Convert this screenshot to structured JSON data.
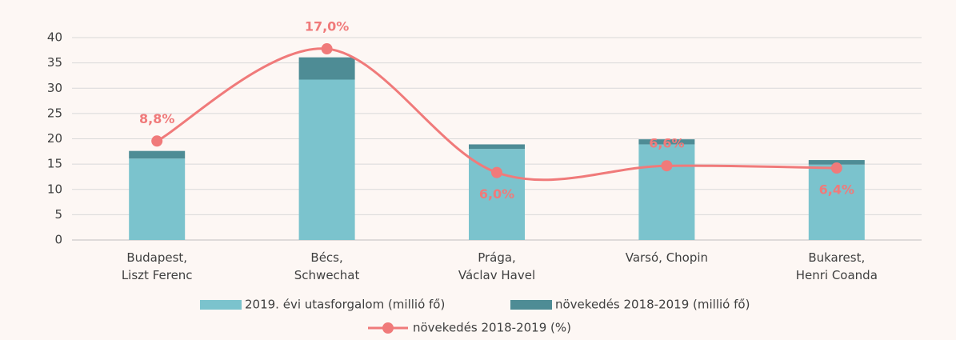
{
  "chart_data": {
    "type": "bar",
    "categories": [
      [
        "Budapest,",
        "Liszt Ferenc"
      ],
      [
        "Bécs,",
        "Schwechat"
      ],
      [
        "Prága,",
        "Václav Havel"
      ],
      [
        "Varsó, Chopin"
      ],
      [
        "Bukarest,",
        "Henri Coanda"
      ]
    ],
    "series": [
      {
        "name": "2019. évi utasforgalom (millió fő)",
        "color": "#7bc3cd",
        "type": "bar",
        "stack": true,
        "values": [
          16.1,
          31.7,
          18.0,
          18.9,
          14.9
        ]
      },
      {
        "name": "növekedés 2018-2019 (millió fő)",
        "color": "#4e8c95",
        "type": "bar",
        "stack": true,
        "values": [
          1.5,
          4.4,
          0.9,
          1.0,
          0.9
        ]
      },
      {
        "name": "növekedés 2018-2019 (%)",
        "color": "#f07a7a",
        "type": "line",
        "axis": "y2",
        "values": [
          8.8,
          17.0,
          6.0,
          6.6,
          6.4
        ],
        "value_labels": [
          "8,8%",
          "17,0%",
          "6,0%",
          "6,6%",
          "6,4%"
        ]
      }
    ],
    "ylim": [
      0,
      40
    ],
    "yticks": [
      0,
      5,
      10,
      15,
      20,
      25,
      30,
      35,
      40
    ],
    "y2lim": [
      0,
      18
    ],
    "grid": true,
    "legend": "bottom"
  }
}
